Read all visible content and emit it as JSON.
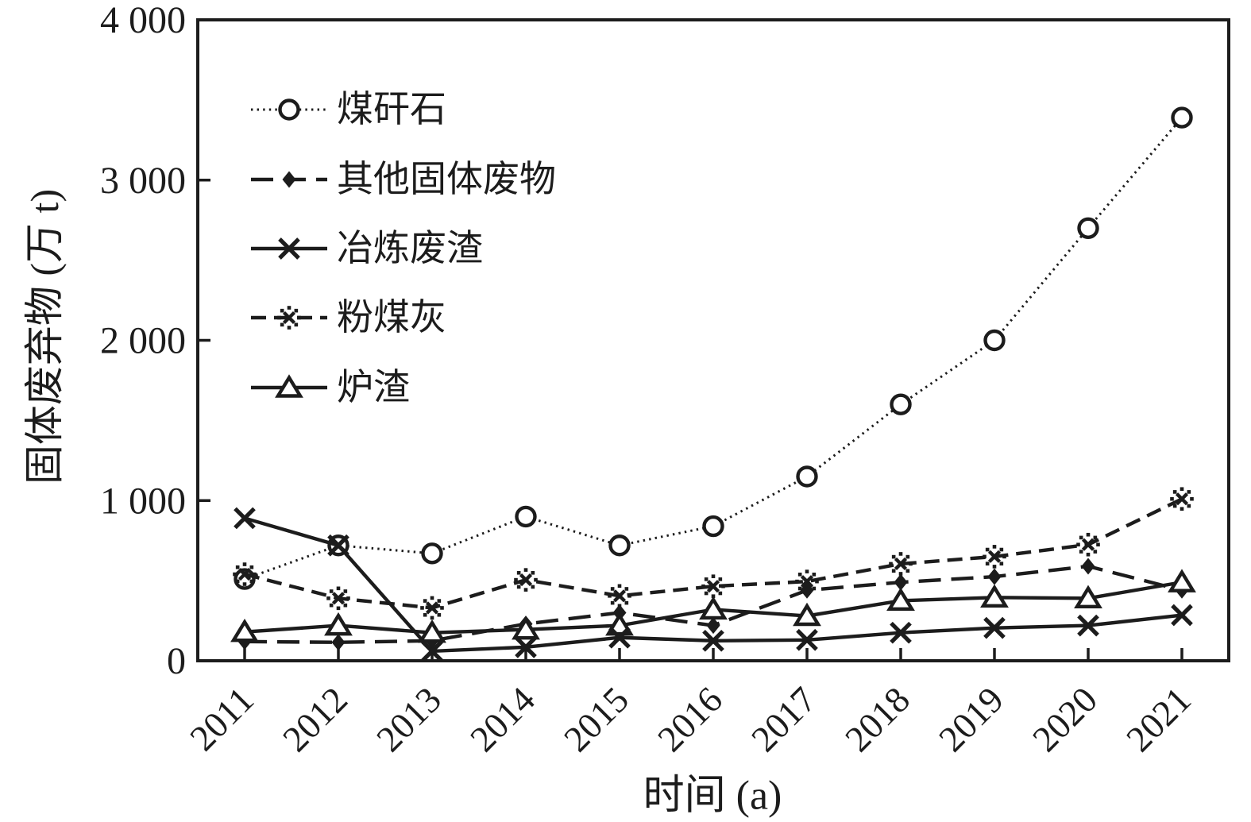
{
  "chart_data": {
    "type": "line",
    "title": "",
    "xlabel": "时间 (a)",
    "ylabel": "固体废弃物 (万 t)",
    "categories": [
      "2011",
      "2012",
      "2013",
      "2014",
      "2015",
      "2016",
      "2017",
      "2018",
      "2019",
      "2020",
      "2021"
    ],
    "ylim": [
      0,
      4000
    ],
    "yticks": [
      0,
      1000,
      2000,
      3000,
      4000
    ],
    "ytick_labels": [
      "0",
      "1 000",
      "2 000",
      "3 000",
      "4 000"
    ],
    "grid": false,
    "legend_position": "upper-left-inside",
    "ink_color": "#1c1c1c",
    "series": [
      {
        "key": "coal-gangue",
        "name": "煤矸石",
        "marker": "circle-open",
        "line": "dotted",
        "values": [
          510,
          720,
          670,
          900,
          720,
          840,
          1150,
          1600,
          2000,
          2700,
          3390
        ]
      },
      {
        "key": "other-solid-waste",
        "name": "其他固体废物",
        "marker": "diamond-filled",
        "line": "long-dash",
        "values": [
          120,
          115,
          125,
          230,
          300,
          220,
          440,
          490,
          525,
          590,
          440
        ]
      },
      {
        "key": "smelting-slag",
        "name": "冶炼废渣",
        "marker": "x",
        "line": "solid",
        "values": [
          890,
          720,
          60,
          85,
          145,
          125,
          130,
          175,
          205,
          220,
          285
        ]
      },
      {
        "key": "fly-ash",
        "name": "粉煤灰",
        "marker": "dotted-star",
        "line": "dash",
        "values": [
          540,
          390,
          330,
          505,
          405,
          465,
          495,
          605,
          650,
          725,
          1010
        ]
      },
      {
        "key": "furnace-slag",
        "name": "炉渣",
        "marker": "triangle-open",
        "line": "solid",
        "values": [
          180,
          220,
          175,
          195,
          220,
          320,
          280,
          375,
          395,
          390,
          490
        ]
      }
    ],
    "draw_order": [
      0,
      3,
      1,
      4,
      2
    ]
  }
}
